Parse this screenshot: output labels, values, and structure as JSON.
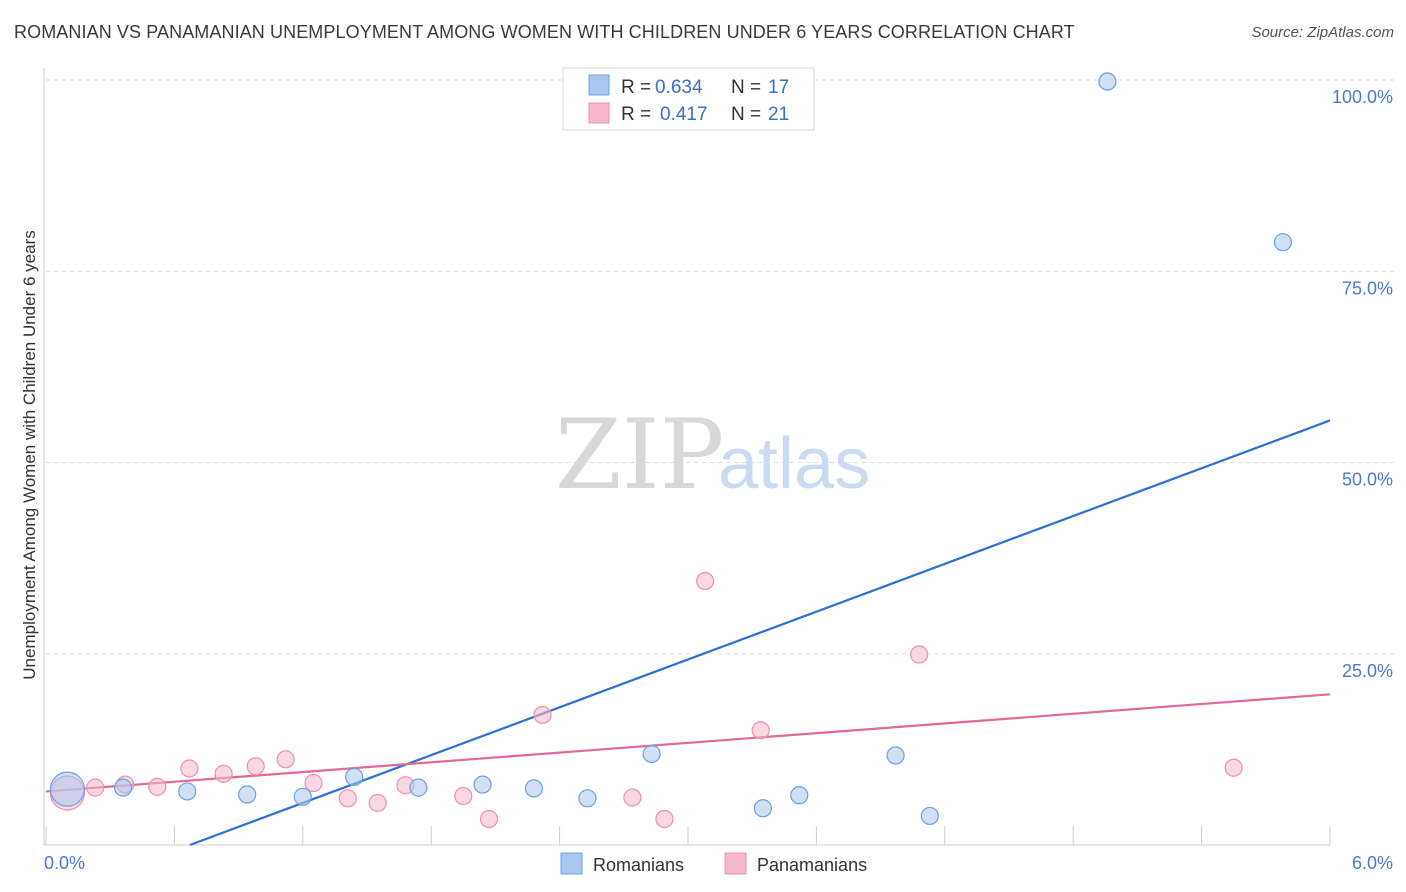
{
  "title": "ROMANIAN VS PANAMANIAN UNEMPLOYMENT AMONG WOMEN WITH CHILDREN UNDER 6 YEARS CORRELATION CHART",
  "source": "Source: ZipAtlas.com",
  "watermark": {
    "zip": "ZIP",
    "atlas": "atlas"
  },
  "legend": {
    "rows": [
      {
        "r_label": "R =",
        "r_value": "0.634",
        "n_label": "N =",
        "n_value": "17",
        "color": "#a9c8f0"
      },
      {
        "r_label": "R =",
        "r_value": "0.417",
        "n_label": "N =",
        "n_value": "21",
        "color": "#f6b8cb"
      }
    ]
  },
  "bottom_legend": [
    {
      "label": "Romanians",
      "color": "#a9c8f0"
    },
    {
      "label": "Panamanians",
      "color": "#f6b8cb"
    }
  ],
  "chart_data": {
    "type": "scatter",
    "title": "ROMANIAN VS PANAMANIAN UNEMPLOYMENT AMONG WOMEN WITH CHILDREN UNDER 6 YEARS CORRELATION CHART",
    "xlabel": "",
    "ylabel": "Unemployment Among Women with Children Under 6 years",
    "xlim": [
      0,
      6
    ],
    "ylim": [
      0,
      100
    ],
    "x_tick_labels": [
      "0.0%",
      "6.0%"
    ],
    "y_ticks": [
      25,
      50,
      75,
      100
    ],
    "y_tick_labels": [
      "25.0%",
      "50.0%",
      "75.0%",
      "100.0%"
    ],
    "grid": true,
    "series": [
      {
        "name": "Romanians",
        "color": "#a9c8f0",
        "stroke": "#6f9fe0",
        "line_color": "#2f6fd4",
        "trend": {
          "x0": 0.0,
          "y0": -7.0,
          "x1": 6.0,
          "y1": 55.5
        },
        "points": [
          {
            "x": 0.1,
            "y": 7.3,
            "big": true
          },
          {
            "x": 0.36,
            "y": 7.5
          },
          {
            "x": 0.66,
            "y": 7.0
          },
          {
            "x": 0.94,
            "y": 6.6
          },
          {
            "x": 1.2,
            "y": 6.3
          },
          {
            "x": 1.44,
            "y": 8.9
          },
          {
            "x": 1.74,
            "y": 7.5
          },
          {
            "x": 2.04,
            "y": 7.9
          },
          {
            "x": 2.28,
            "y": 7.4
          },
          {
            "x": 2.53,
            "y": 6.1
          },
          {
            "x": 2.83,
            "y": 11.9
          },
          {
            "x": 3.35,
            "y": 4.8
          },
          {
            "x": 3.52,
            "y": 6.5
          },
          {
            "x": 3.97,
            "y": 11.7
          },
          {
            "x": 4.13,
            "y": 3.8
          },
          {
            "x": 4.96,
            "y": 99.8
          },
          {
            "x": 5.78,
            "y": 78.8
          }
        ]
      },
      {
        "name": "Panamanians",
        "color": "#f6b8cb",
        "stroke": "#ee8fae",
        "line_color": "#e2689a",
        "trend": {
          "x0": 0.0,
          "y0": 7.0,
          "x1": 6.0,
          "y1": 19.7
        },
        "points": [
          {
            "x": 0.1,
            "y": 6.8,
            "big": true
          },
          {
            "x": 0.23,
            "y": 7.5
          },
          {
            "x": 0.37,
            "y": 7.9
          },
          {
            "x": 0.52,
            "y": 7.6
          },
          {
            "x": 0.67,
            "y": 10.0
          },
          {
            "x": 0.83,
            "y": 9.3
          },
          {
            "x": 0.98,
            "y": 10.3
          },
          {
            "x": 1.12,
            "y": 11.2
          },
          {
            "x": 1.25,
            "y": 8.1
          },
          {
            "x": 1.41,
            "y": 6.1
          },
          {
            "x": 1.55,
            "y": 5.5
          },
          {
            "x": 1.68,
            "y": 7.8
          },
          {
            "x": 1.95,
            "y": 6.4
          },
          {
            "x": 2.07,
            "y": 3.4
          },
          {
            "x": 2.32,
            "y": 17.0
          },
          {
            "x": 2.74,
            "y": 6.2
          },
          {
            "x": 2.89,
            "y": 3.4
          },
          {
            "x": 3.08,
            "y": 34.5
          },
          {
            "x": 3.34,
            "y": 15.0
          },
          {
            "x": 4.08,
            "y": 24.9
          },
          {
            "x": 5.55,
            "y": 10.1
          }
        ]
      }
    ]
  }
}
